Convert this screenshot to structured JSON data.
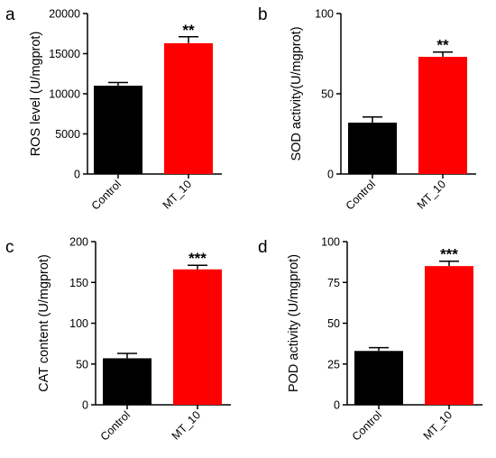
{
  "chart_data": [
    {
      "type": "bar",
      "panel": "a",
      "categories": [
        "Control",
        "MT_10"
      ],
      "values": [
        11000,
        16300
      ],
      "errors": [
        400,
        800
      ],
      "colors": [
        "#000000",
        "#ff0000"
      ],
      "significance": "**",
      "ylabel": "ROS level (U/mgprot)",
      "ylim": [
        0,
        20000
      ],
      "yticks": [
        "0",
        "5000",
        "10000",
        "15000",
        "20000"
      ],
      "grid": false,
      "legend": "none"
    },
    {
      "type": "bar",
      "panel": "b",
      "categories": [
        "Control",
        "MT_10"
      ],
      "values": [
        32,
        73
      ],
      "errors": [
        3.5,
        3
      ],
      "colors": [
        "#000000",
        "#ff0000"
      ],
      "significance": "**",
      "ylabel": "SOD activity(U/mgprot)",
      "ylim": [
        0,
        100
      ],
      "yticks": [
        "0",
        "50",
        "100"
      ],
      "grid": false,
      "legend": "none"
    },
    {
      "type": "bar",
      "panel": "c",
      "categories": [
        "Control",
        "MT_10"
      ],
      "values": [
        57,
        166
      ],
      "errors": [
        6,
        5
      ],
      "colors": [
        "#000000",
        "#ff0000"
      ],
      "significance": "***",
      "ylabel": "CAT content (U/mgprot)",
      "ylim": [
        0,
        200
      ],
      "yticks": [
        "0",
        "50",
        "100",
        "150",
        "200"
      ],
      "grid": false,
      "legend": "none"
    },
    {
      "type": "bar",
      "panel": "d",
      "categories": [
        "Control",
        "MT_10"
      ],
      "values": [
        33,
        85
      ],
      "errors": [
        2,
        3
      ],
      "colors": [
        "#000000",
        "#ff0000"
      ],
      "significance": "***",
      "ylabel": "POD activity (U/mgprot)",
      "ylim": [
        0,
        100
      ],
      "yticks": [
        "0",
        "25",
        "50",
        "75",
        "100"
      ],
      "grid": false,
      "legend": "none"
    }
  ]
}
